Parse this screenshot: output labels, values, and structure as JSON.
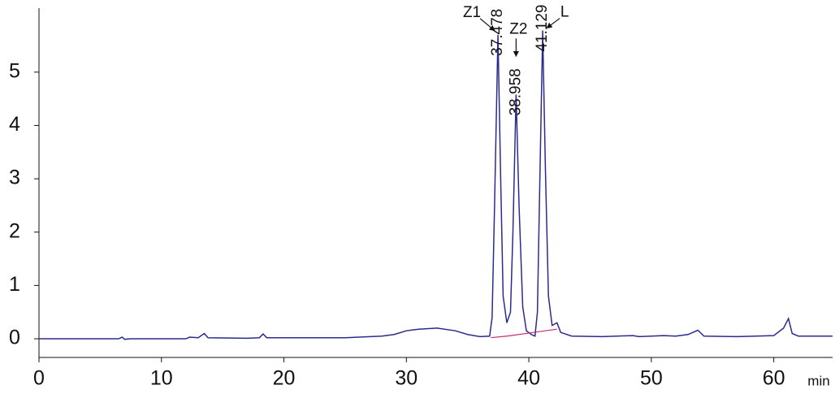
{
  "chart_data": {
    "type": "line",
    "x_label": "min",
    "xlim": [
      0,
      64.8
    ],
    "ylim": [
      -0.35,
      6.2
    ],
    "xticks": [
      0,
      10,
      20,
      30,
      40,
      50,
      60
    ],
    "yticks": [
      0,
      1,
      2,
      3,
      4,
      5
    ],
    "series": [
      {
        "color": "#2b2b8f",
        "x": [
          0,
          6.5,
          6.8,
          7,
          7.5,
          12,
          12.3,
          13,
          13.5,
          13.8,
          17,
          18,
          18.3,
          18.6,
          25,
          28,
          29,
          30,
          31,
          32.5,
          34,
          35,
          36,
          36.8,
          37.0,
          37.2,
          37.478,
          37.7,
          37.9,
          38.2,
          38.5,
          38.7,
          38.958,
          39.2,
          39.5,
          39.8,
          40.2,
          40.5,
          40.7,
          40.9,
          41.129,
          41.35,
          41.6,
          41.9,
          42.3,
          42.6,
          43.5,
          46,
          48.5,
          49,
          51,
          52,
          53,
          53.8,
          54.3,
          57,
          60,
          60.8,
          61.2,
          61.5,
          62,
          64.8
        ],
        "values": [
          0,
          0,
          0.03,
          -0.01,
          0,
          0,
          0.03,
          0.02,
          0.1,
          0.02,
          0.01,
          0.02,
          0.09,
          0.02,
          0.02,
          0.05,
          0.08,
          0.15,
          0.18,
          0.2,
          0.15,
          0.08,
          0.04,
          0.05,
          0.4,
          2.5,
          5.7,
          3.0,
          0.8,
          0.3,
          0.5,
          2,
          4.58,
          2.5,
          0.6,
          0.15,
          0.08,
          0.05,
          0.5,
          3,
          5.78,
          3.2,
          0.8,
          0.25,
          0.3,
          0.12,
          0.05,
          0.04,
          0.06,
          0.04,
          0.06,
          0.05,
          0.08,
          0.16,
          0.05,
          0.04,
          0.06,
          0.2,
          0.38,
          0.1,
          0.05,
          0.05
        ]
      },
      {
        "color": "#c03070",
        "x": [
          36.9,
          38.2,
          39.8,
          42.3
        ],
        "values": [
          0.02,
          0.05,
          0.1,
          0.18
        ]
      }
    ],
    "peaks": [
      {
        "label": "Z1",
        "time": 37.478
      },
      {
        "label": "Z2",
        "time": 38.958
      },
      {
        "label": "L",
        "time": 41.129
      }
    ]
  }
}
